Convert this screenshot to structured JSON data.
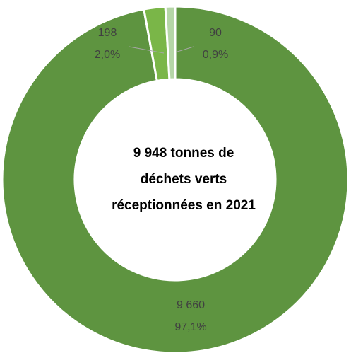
{
  "chart_data": {
    "type": "donut",
    "center_text": [
      "9 948 tonnes  de",
      "déchets verts",
      "réceptionnées en 2021"
    ],
    "categories": [
      null,
      null,
      null
    ],
    "values": [
      9660,
      198,
      90
    ],
    "value_labels": [
      "9 660",
      "198",
      "90"
    ],
    "percents": [
      97.1,
      2.0,
      0.9
    ],
    "percent_labels": [
      "97,1%",
      "2,0%",
      "0,9%"
    ],
    "colors": [
      "#5e9440",
      "#7ab648",
      "#b5d6a7"
    ]
  }
}
